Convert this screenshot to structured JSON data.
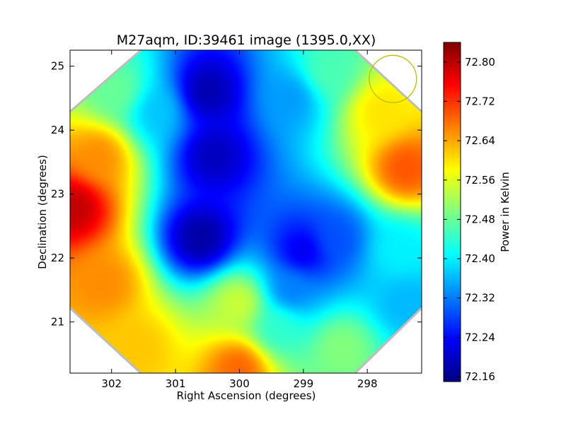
{
  "chart_data": {
    "type": "heatmap",
    "title": "M27aqm, ID:39461 image (1395.0,XX)",
    "xlabel": "Right Ascension (degrees)",
    "ylabel": "Declination (degrees)",
    "xlim": [
      302.65,
      297.15
    ],
    "ylim": [
      20.2,
      25.25
    ],
    "x_ticks": [
      302,
      301,
      300,
      299,
      298
    ],
    "y_ticks": [
      21,
      22,
      23,
      24,
      25
    ],
    "colorbar": {
      "label": "Power in Kelvin",
      "colormap": "jet",
      "range": [
        72.15,
        72.84
      ],
      "ticks": [
        "72.16",
        "72.24",
        "72.32",
        "72.40",
        "72.48",
        "72.56",
        "72.64",
        "72.72",
        "72.80"
      ]
    },
    "footprint": "octagon",
    "beam_marker": {
      "shape": "circle",
      "center_ra": 297.6,
      "center_dec": 24.8,
      "radius_deg": 0.37,
      "color": "#bfbf00"
    },
    "field_samples": [
      {
        "ra": 302.6,
        "dec": 22.8,
        "value": 72.8
      },
      {
        "ra": 302.2,
        "dec": 23.6,
        "value": 72.66
      },
      {
        "ra": 302.1,
        "dec": 21.6,
        "value": 72.66
      },
      {
        "ra": 301.6,
        "dec": 20.6,
        "value": 72.62
      },
      {
        "ra": 300.0,
        "dec": 20.3,
        "value": 72.69
      },
      {
        "ra": 301.9,
        "dec": 24.6,
        "value": 72.48
      },
      {
        "ra": 301.3,
        "dec": 24.3,
        "value": 72.37
      },
      {
        "ra": 300.5,
        "dec": 24.6,
        "value": 72.18
      },
      {
        "ra": 300.4,
        "dec": 23.6,
        "value": 72.19
      },
      {
        "ra": 300.6,
        "dec": 22.3,
        "value": 72.17
      },
      {
        "ra": 299.0,
        "dec": 22.1,
        "value": 72.22
      },
      {
        "ra": 298.5,
        "dec": 22.3,
        "value": 72.29
      },
      {
        "ra": 299.2,
        "dec": 21.5,
        "value": 72.32
      },
      {
        "ra": 299.4,
        "dec": 20.9,
        "value": 72.44
      },
      {
        "ra": 299.2,
        "dec": 24.5,
        "value": 72.34
      },
      {
        "ra": 298.6,
        "dec": 24.9,
        "value": 72.46
      },
      {
        "ra": 297.4,
        "dec": 23.4,
        "value": 72.7
      },
      {
        "ra": 297.8,
        "dec": 24.3,
        "value": 72.6
      },
      {
        "ra": 297.5,
        "dec": 22.1,
        "value": 72.4
      },
      {
        "ra": 297.4,
        "dec": 21.3,
        "value": 72.36
      },
      {
        "ra": 298.4,
        "dec": 20.6,
        "value": 72.5
      },
      {
        "ra": 300.0,
        "dec": 21.3,
        "value": 72.55
      }
    ]
  }
}
